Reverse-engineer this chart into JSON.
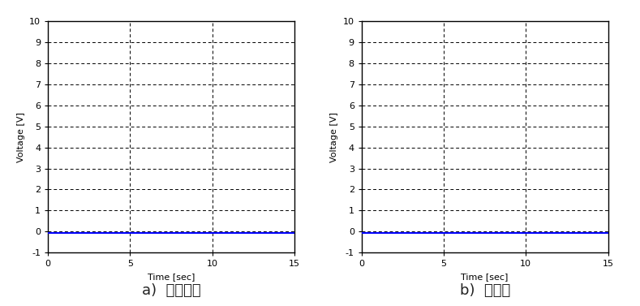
{
  "xlim": [
    0,
    15
  ],
  "ylim": [
    -1,
    10
  ],
  "xticks": [
    0,
    5,
    10,
    15
  ],
  "yticks": [
    -1,
    0,
    1,
    2,
    3,
    4,
    5,
    6,
    7,
    8,
    9,
    10
  ],
  "xlabel": "Time [sec]",
  "ylabel": "Voltage [V]",
  "line_color": "#0000FF",
  "line_y": -0.08,
  "grid_color": "#000000",
  "grid_linestyle": "--",
  "grid_linewidth": 0.7,
  "axis_linecolor": "#000000",
  "label_a": "a)  발전기반",
  "label_b": "b)  동기반",
  "label_fontsize": 13,
  "tick_fontsize": 8,
  "axis_label_fontsize": 8,
  "background_color": "#ffffff",
  "label_color": "#222222",
  "line_linewidth": 1.5
}
